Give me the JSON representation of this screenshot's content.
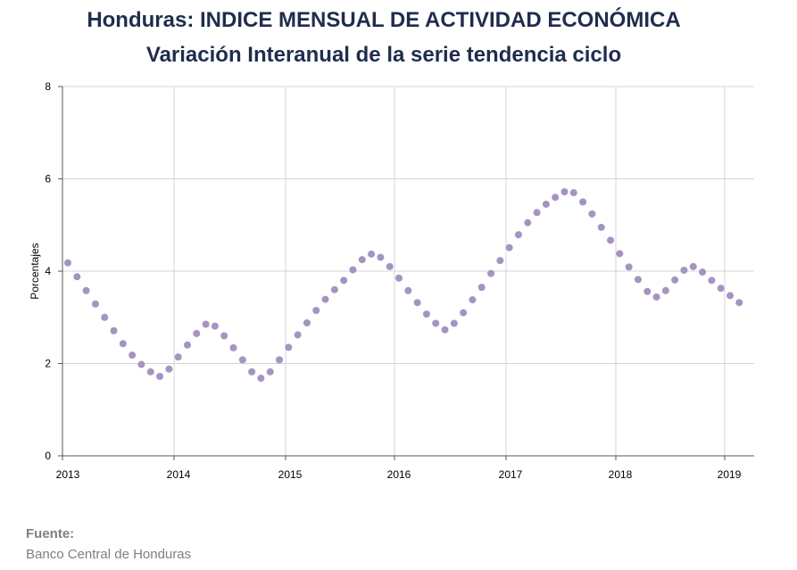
{
  "chart_data": {
    "type": "scatter",
    "title": "Honduras: INDICE MENSUAL DE ACTIVIDAD ECONÓMICA",
    "subtitle": "Variación Interanual de la serie tendencia ciclo",
    "ylabel": "Porcentajes",
    "xlabel": "",
    "ylim": [
      0,
      8
    ],
    "yticks": [
      "0",
      "2",
      "4",
      "6",
      "8"
    ],
    "x_tick_labels": [
      "2013",
      "2014",
      "2015",
      "2016",
      "2017",
      "2018",
      "2019"
    ],
    "grid": true,
    "marker_color": "#a593c2",
    "series": [
      {
        "x_start": "2013-01",
        "frequency": "monthly",
        "values": [
          4.18,
          3.88,
          3.58,
          3.29,
          3.0,
          2.71,
          2.43,
          2.18,
          1.98,
          1.82,
          1.72,
          1.88,
          2.14,
          2.4,
          2.65,
          2.85,
          2.81,
          2.6,
          2.34,
          2.08,
          1.82,
          1.68,
          1.82,
          2.08,
          2.35,
          2.62,
          2.88,
          3.15,
          3.39,
          3.6,
          3.8,
          4.03,
          4.25,
          4.37,
          4.3,
          4.1,
          3.85,
          3.58,
          3.32,
          3.07,
          2.87,
          2.73,
          2.87,
          3.1,
          3.38,
          3.65,
          3.95,
          4.23,
          4.51,
          4.79,
          5.05,
          5.27,
          5.45,
          5.6,
          5.72,
          5.7,
          5.5,
          5.24,
          4.95,
          4.67,
          4.38,
          4.09,
          3.82,
          3.56,
          3.44,
          3.58,
          3.81,
          4.02,
          4.1,
          3.98,
          3.8,
          3.63,
          3.47,
          3.32
        ]
      }
    ]
  },
  "source": {
    "label": "Fuente:",
    "text": "Banco Central de Honduras"
  }
}
